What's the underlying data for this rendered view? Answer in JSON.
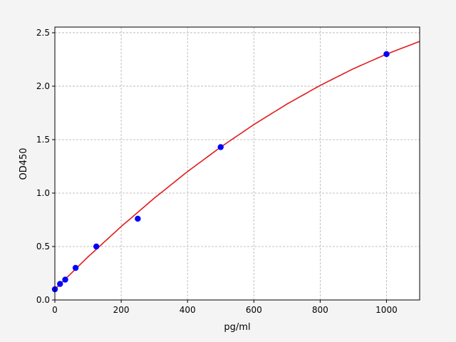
{
  "chart_data": {
    "type": "scatter",
    "title": "",
    "xlabel": "pg/ml",
    "ylabel": "OD450",
    "xlim": [
      0,
      1100
    ],
    "ylim": [
      0,
      2.553
    ],
    "xticks": [
      0,
      200,
      400,
      600,
      800,
      1000
    ],
    "xtick_labels": [
      "0",
      "200",
      "400",
      "600",
      "800",
      "1000"
    ],
    "yticks": [
      0,
      0.5,
      1.0,
      1.5,
      2.0,
      2.5
    ],
    "ytick_labels": [
      "0.0",
      "0.5",
      "1.0",
      "1.5",
      "2.0",
      "2.5"
    ],
    "grid": true,
    "points": {
      "x": [
        0,
        15.6,
        31.25,
        62.5,
        125,
        250,
        500,
        1000
      ],
      "y": [
        0.1,
        0.15,
        0.19,
        0.3,
        0.5,
        0.76,
        1.43,
        2.3
      ],
      "color": "#0000ff"
    },
    "fit_curve": {
      "x": [
        0,
        100,
        200,
        300,
        400,
        500,
        600,
        700,
        800,
        900,
        1000,
        1100
      ],
      "y": [
        0.1,
        0.403,
        0.687,
        0.953,
        1.201,
        1.43,
        1.641,
        1.833,
        2.007,
        2.163,
        2.3,
        2.419
      ],
      "color": "#e31a1c"
    }
  }
}
